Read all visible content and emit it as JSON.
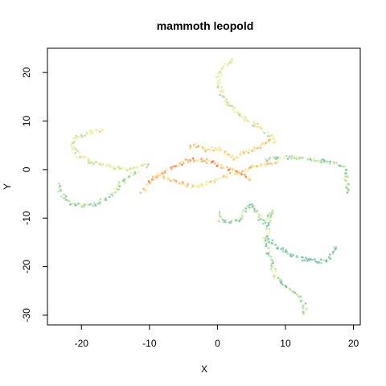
{
  "chart_data": {
    "type": "scatter",
    "title": "mammoth leopold",
    "xlabel": "X",
    "ylabel": "Y",
    "xlim": [
      -25,
      21
    ],
    "ylim": [
      -32,
      25
    ],
    "xticks": [
      -20,
      -10,
      0,
      10,
      20
    ],
    "yticks": [
      -30,
      -20,
      -10,
      0,
      10,
      20
    ],
    "grid": false,
    "legend": "none",
    "palette": [
      "#66c2a5",
      "#abdda4",
      "#e6f598",
      "#fee08b",
      "#fdae61",
      "#f46d43"
    ],
    "paths": [
      {
        "name": "top-arm",
        "color_index": 2,
        "points": [
          [
            2.5,
            22.5
          ],
          [
            1.0,
            21.5
          ],
          [
            0.0,
            19.0
          ],
          [
            0.5,
            16.0
          ],
          [
            1.5,
            13.5
          ],
          [
            3.0,
            11.5
          ],
          [
            4.5,
            10.0
          ],
          [
            6.0,
            9.0
          ],
          [
            7.0,
            8.0
          ],
          [
            8.5,
            6.0
          ]
        ]
      },
      {
        "name": "upper-left-arm",
        "color_index": 2,
        "points": [
          [
            -17.0,
            8.0
          ],
          [
            -19.5,
            7.5
          ],
          [
            -21.0,
            6.5
          ],
          [
            -21.5,
            4.5
          ],
          [
            -20.5,
            3.0
          ],
          [
            -18.5,
            1.5
          ],
          [
            -17.0,
            1.0
          ],
          [
            -15.5,
            0.5
          ],
          [
            -13.5,
            0.0
          ],
          [
            -12.0,
            0.5
          ],
          [
            -10.0,
            1.0
          ]
        ]
      },
      {
        "name": "left-arm",
        "color_index": 1,
        "points": [
          [
            -23.5,
            -3.0
          ],
          [
            -23.0,
            -5.0
          ],
          [
            -21.5,
            -7.0
          ],
          [
            -19.5,
            -7.5
          ],
          [
            -17.5,
            -7.0
          ],
          [
            -15.5,
            -5.0
          ],
          [
            -14.5,
            -3.5
          ],
          [
            -13.5,
            -2.0
          ],
          [
            -12.5,
            -1.0
          ],
          [
            -11.5,
            0.0
          ]
        ]
      },
      {
        "name": "core-left",
        "color_index": 4,
        "points": [
          [
            -11.0,
            -4.5
          ],
          [
            -10.0,
            -2.5
          ],
          [
            -8.0,
            -0.5
          ],
          [
            -6.0,
            1.0
          ],
          [
            -4.0,
            2.0
          ],
          [
            -2.0,
            2.0
          ],
          [
            0.0,
            1.0
          ],
          [
            2.0,
            0.0
          ],
          [
            3.5,
            -1.0
          ],
          [
            5.0,
            -2.0
          ]
        ]
      },
      {
        "name": "core-center",
        "color_index": 3,
        "points": [
          [
            -4.0,
            4.5
          ],
          [
            -3.0,
            5.0
          ],
          [
            -1.5,
            4.0
          ],
          [
            0.0,
            4.5
          ],
          [
            1.5,
            3.0
          ],
          [
            2.5,
            2.0
          ],
          [
            3.5,
            3.5
          ],
          [
            5.0,
            4.0
          ],
          [
            6.5,
            5.0
          ],
          [
            7.5,
            6.0
          ],
          [
            8.5,
            5.5
          ]
        ]
      },
      {
        "name": "core-lower",
        "color_index": 3,
        "points": [
          [
            -8.5,
            -1.0
          ],
          [
            -7.0,
            -2.0
          ],
          [
            -5.0,
            -3.0
          ],
          [
            -3.0,
            -3.5
          ],
          [
            -1.0,
            -2.5
          ],
          [
            1.0,
            -1.5
          ],
          [
            3.0,
            -0.5
          ],
          [
            5.0,
            0.5
          ],
          [
            7.0,
            1.0
          ],
          [
            9.0,
            1.5
          ]
        ]
      },
      {
        "name": "right-arm",
        "color_index": 1,
        "points": [
          [
            7.0,
            2.0
          ],
          [
            9.5,
            2.5
          ],
          [
            12.0,
            2.5
          ],
          [
            14.5,
            2.0
          ],
          [
            16.5,
            1.5
          ],
          [
            18.0,
            1.0
          ],
          [
            19.0,
            0.0
          ],
          [
            19.0,
            -2.0
          ],
          [
            19.0,
            -4.0
          ],
          [
            19.5,
            -5.0
          ]
        ]
      },
      {
        "name": "lower-center-loops",
        "color_index": 1,
        "points": [
          [
            0.0,
            -9.0
          ],
          [
            0.5,
            -10.5
          ],
          [
            2.0,
            -11.0
          ],
          [
            3.5,
            -10.0
          ],
          [
            4.0,
            -8.0
          ],
          [
            5.0,
            -7.0
          ],
          [
            6.0,
            -9.0
          ],
          [
            6.5,
            -11.0
          ],
          [
            7.5,
            -10.0
          ],
          [
            8.0,
            -8.5
          ],
          [
            7.5,
            -12.0
          ],
          [
            7.0,
            -14.0
          ]
        ]
      },
      {
        "name": "lower-right-arm",
        "color_index": 0,
        "points": [
          [
            7.0,
            -14.0
          ],
          [
            9.0,
            -16.0
          ],
          [
            11.0,
            -17.5
          ],
          [
            13.0,
            -18.5
          ],
          [
            15.0,
            -19.0
          ],
          [
            16.5,
            -18.5
          ],
          [
            17.0,
            -17.0
          ],
          [
            17.5,
            -15.5
          ]
        ]
      },
      {
        "name": "bottom-arm",
        "color_index": 1,
        "points": [
          [
            7.0,
            -14.0
          ],
          [
            7.5,
            -17.0
          ],
          [
            8.0,
            -20.0
          ],
          [
            8.5,
            -22.0
          ],
          [
            10.0,
            -24.0
          ],
          [
            11.5,
            -25.5
          ],
          [
            12.5,
            -27.0
          ],
          [
            13.0,
            -29.0
          ],
          [
            12.5,
            -30.0
          ]
        ]
      }
    ]
  }
}
